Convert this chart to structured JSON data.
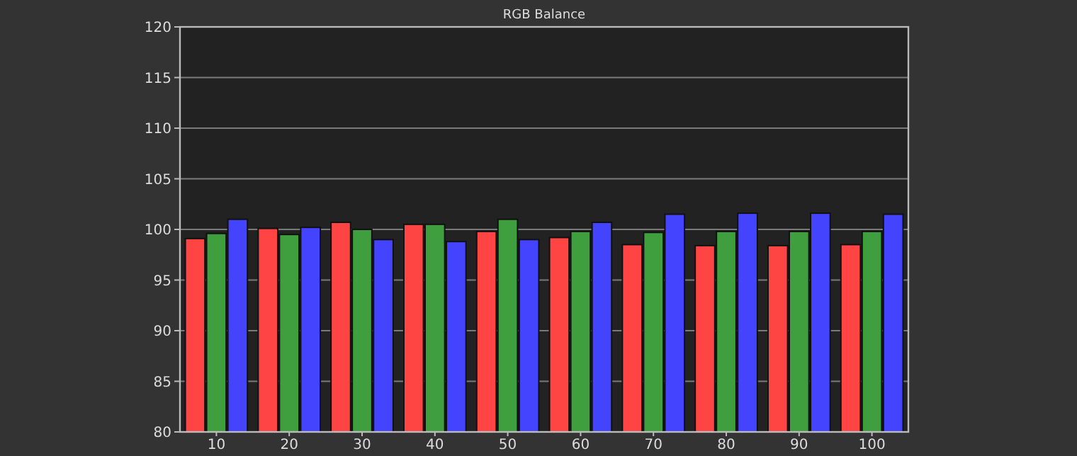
{
  "chart_data": {
    "type": "bar",
    "title": "RGB Balance",
    "categories": [
      "10",
      "20",
      "30",
      "40",
      "50",
      "60",
      "70",
      "80",
      "90",
      "100"
    ],
    "series": [
      {
        "color": "#ff4444",
        "values": [
          99.1,
          100.1,
          100.7,
          100.5,
          99.8,
          99.2,
          98.5,
          98.4,
          98.4,
          98.5
        ]
      },
      {
        "color": "#3f9f3f",
        "values": [
          99.6,
          99.5,
          100.0,
          100.5,
          101.0,
          99.8,
          99.7,
          99.8,
          99.8,
          99.8
        ]
      },
      {
        "color": "#4444ff",
        "values": [
          101.0,
          100.2,
          99.0,
          98.8,
          99.0,
          100.7,
          101.5,
          101.6,
          101.6,
          101.5
        ]
      }
    ],
    "ylim": [
      80,
      120
    ],
    "yticks": [
      80,
      85,
      90,
      95,
      100,
      105,
      110,
      115,
      120
    ],
    "grid": "y"
  }
}
